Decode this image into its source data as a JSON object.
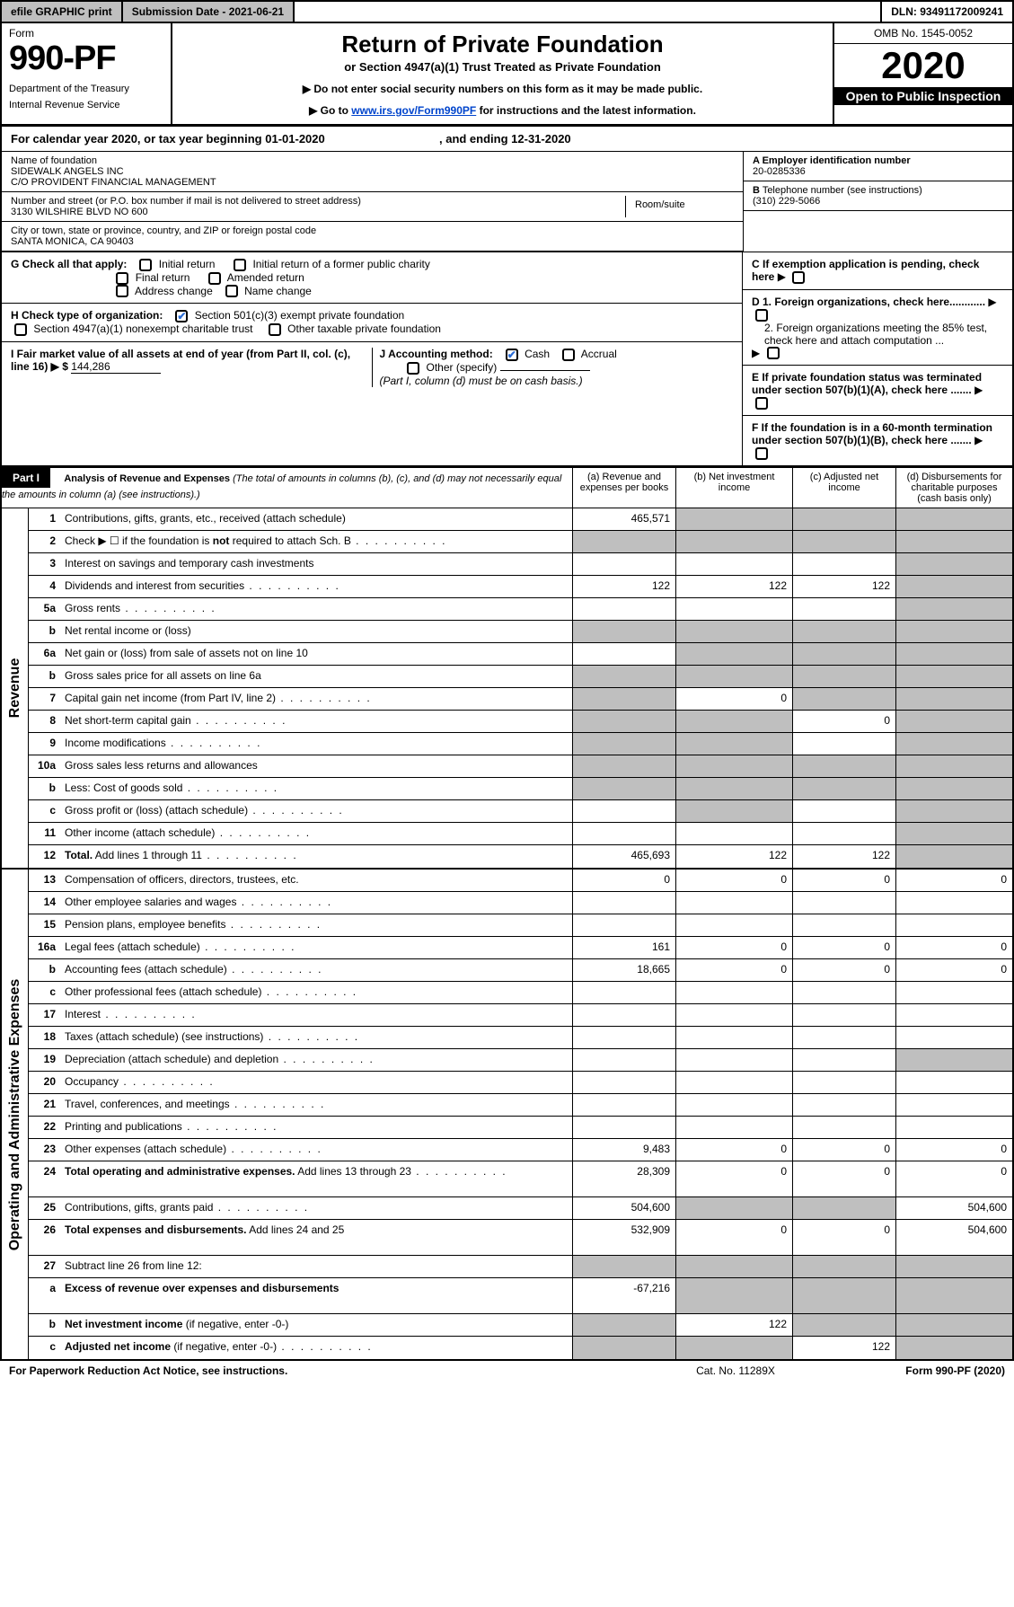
{
  "topbar": {
    "efile": "efile GRAPHIC print",
    "submission": "Submission Date - 2021-06-21",
    "dln": "DLN: 93491172009241"
  },
  "header": {
    "form_label": "Form",
    "form_number": "990-PF",
    "dept1": "Department of the Treasury",
    "dept2": "Internal Revenue Service",
    "title": "Return of Private Foundation",
    "subtitle": "or Section 4947(a)(1) Trust Treated as Private Foundation",
    "note1": "▶ Do not enter social security numbers on this form as it may be made public.",
    "note2_pre": "▶ Go to ",
    "note2_link": "www.irs.gov/Form990PF",
    "note2_post": " for instructions and the latest information.",
    "omb": "OMB No. 1545-0052",
    "year": "2020",
    "open": "Open to Public Inspection"
  },
  "calendar": {
    "pre": "For calendar year 2020, or tax year beginning ",
    "begin": "01-01-2020",
    "mid": " , and ending ",
    "end": "12-31-2020"
  },
  "info": {
    "name_lbl": "Name of foundation",
    "name1": "SIDEWALK ANGELS INC",
    "name2": "C/O PROVIDENT FINANCIAL MANAGEMENT",
    "street_lbl": "Number and street (or P.O. box number if mail is not delivered to street address)",
    "street": "3130 WILSHIRE BLVD NO 600",
    "room_lbl": "Room/suite",
    "city_lbl": "City or town, state or province, country, and ZIP or foreign postal code",
    "city": "SANTA MONICA, CA  90403",
    "a_lbl": "A Employer identification number",
    "a_val": "20-0285336",
    "b_lbl": "B",
    "b_text": " Telephone number (see instructions)",
    "b_val": "(310) 229-5066",
    "c_text": "C If exemption application is pending, check here",
    "d1": "D 1. Foreign organizations, check here............",
    "d2": "2. Foreign organizations meeting the 85% test, check here and attach computation ...",
    "e": "E  If private foundation status was terminated under section 507(b)(1)(A), check here .......",
    "f": "F  If the foundation is in a 60-month termination under section 507(b)(1)(B), check here .......",
    "g_lbl": "G Check all that apply:",
    "g1": "Initial return",
    "g2": "Initial return of a former public charity",
    "g3": "Final return",
    "g4": "Amended return",
    "g5": "Address change",
    "g6": "Name change",
    "h_lbl": "H Check type of organization:",
    "h1": "Section 501(c)(3) exempt private foundation",
    "h2": "Section 4947(a)(1) nonexempt charitable trust",
    "h3": "Other taxable private foundation",
    "i_lbl": "I Fair market value of all assets at end of year (from Part II, col. (c), line 16) ▶ $ ",
    "i_val": "144,286",
    "j_lbl": "J Accounting method:",
    "j1": "Cash",
    "j2": "Accrual",
    "j3": "Other (specify)",
    "j_note": "(Part I, column (d) must be on cash basis.)"
  },
  "part1": {
    "label": "Part I",
    "title": "Analysis of Revenue and Expenses",
    "title_note": "(The total of amounts in columns (b), (c), and (d) may not necessarily equal the amounts in column (a) (see instructions).)",
    "col_a": "(a)   Revenue and expenses per books",
    "col_b": "(b)  Net investment income",
    "col_c": "(c)  Adjusted net income",
    "col_d": "(d)  Disbursements for charitable purposes (cash basis only)",
    "side_revenue": "Revenue",
    "side_expenses": "Operating and Administrative Expenses"
  },
  "rows_rev": [
    {
      "n": "1",
      "label": "Contributions, gifts, grants, etc., received (attach schedule)",
      "a": "465,571",
      "b": "",
      "c": "",
      "d": "",
      "grey": [
        "b",
        "c",
        "d"
      ]
    },
    {
      "n": "2",
      "label": "Check ▶ ☐ if the foundation is <b>not</b> required to attach Sch. B",
      "a": "",
      "b": "",
      "c": "",
      "d": "",
      "grey": [
        "a",
        "b",
        "c",
        "d"
      ],
      "html": true,
      "dots": true
    },
    {
      "n": "3",
      "label": "Interest on savings and temporary cash investments",
      "a": "",
      "b": "",
      "c": "",
      "d": "",
      "grey": [
        "d"
      ]
    },
    {
      "n": "4",
      "label": "Dividends and interest from securities",
      "a": "122",
      "b": "122",
      "c": "122",
      "d": "",
      "grey": [
        "d"
      ],
      "dots": true
    },
    {
      "n": "5a",
      "label": "Gross rents",
      "a": "",
      "b": "",
      "c": "",
      "d": "",
      "grey": [
        "d"
      ],
      "dots": true
    },
    {
      "n": "b",
      "label": "Net rental income or (loss)",
      "a": "",
      "b": "",
      "c": "",
      "d": "",
      "grey": [
        "a",
        "b",
        "c",
        "d"
      ]
    },
    {
      "n": "6a",
      "label": "Net gain or (loss) from sale of assets not on line 10",
      "a": "",
      "b": "",
      "c": "",
      "d": "",
      "grey": [
        "b",
        "c",
        "d"
      ]
    },
    {
      "n": "b",
      "label": "Gross sales price for all assets on line 6a",
      "a": "",
      "b": "",
      "c": "",
      "d": "",
      "grey": [
        "a",
        "b",
        "c",
        "d"
      ]
    },
    {
      "n": "7",
      "label": "Capital gain net income (from Part IV, line 2)",
      "a": "",
      "b": "0",
      "c": "",
      "d": "",
      "grey": [
        "a",
        "c",
        "d"
      ],
      "dots": true
    },
    {
      "n": "8",
      "label": "Net short-term capital gain",
      "a": "",
      "b": "",
      "c": "0",
      "d": "",
      "grey": [
        "a",
        "b",
        "d"
      ],
      "dots": true
    },
    {
      "n": "9",
      "label": "Income modifications",
      "a": "",
      "b": "",
      "c": "",
      "d": "",
      "grey": [
        "a",
        "b",
        "d"
      ],
      "dots": true
    },
    {
      "n": "10a",
      "label": "Gross sales less returns and allowances",
      "a": "",
      "b": "",
      "c": "",
      "d": "",
      "grey": [
        "a",
        "b",
        "c",
        "d"
      ]
    },
    {
      "n": "b",
      "label": "Less: Cost of goods sold",
      "a": "",
      "b": "",
      "c": "",
      "d": "",
      "grey": [
        "a",
        "b",
        "c",
        "d"
      ],
      "dots": true
    },
    {
      "n": "c",
      "label": "Gross profit or (loss) (attach schedule)",
      "a": "",
      "b": "",
      "c": "",
      "d": "",
      "grey": [
        "b",
        "d"
      ],
      "dots": true
    },
    {
      "n": "11",
      "label": "Other income (attach schedule)",
      "a": "",
      "b": "",
      "c": "",
      "d": "",
      "grey": [
        "d"
      ],
      "dots": true
    },
    {
      "n": "12",
      "label": "<b>Total.</b> Add lines 1 through 11",
      "a": "465,693",
      "b": "122",
      "c": "122",
      "d": "",
      "grey": [
        "d"
      ],
      "html": true,
      "dots": true
    }
  ],
  "rows_exp": [
    {
      "n": "13",
      "label": "Compensation of officers, directors, trustees, etc.",
      "a": "0",
      "b": "0",
      "c": "0",
      "d": "0"
    },
    {
      "n": "14",
      "label": "Other employee salaries and wages",
      "a": "",
      "b": "",
      "c": "",
      "d": "",
      "dots": true
    },
    {
      "n": "15",
      "label": "Pension plans, employee benefits",
      "a": "",
      "b": "",
      "c": "",
      "d": "",
      "dots": true
    },
    {
      "n": "16a",
      "label": "Legal fees (attach schedule)",
      "a": "161",
      "b": "0",
      "c": "0",
      "d": "0",
      "dots": true
    },
    {
      "n": "b",
      "label": "Accounting fees (attach schedule)",
      "a": "18,665",
      "b": "0",
      "c": "0",
      "d": "0",
      "dots": true
    },
    {
      "n": "c",
      "label": "Other professional fees (attach schedule)",
      "a": "",
      "b": "",
      "c": "",
      "d": "",
      "dots": true
    },
    {
      "n": "17",
      "label": "Interest",
      "a": "",
      "b": "",
      "c": "",
      "d": "",
      "dots": true
    },
    {
      "n": "18",
      "label": "Taxes (attach schedule) (see instructions)",
      "a": "",
      "b": "",
      "c": "",
      "d": "",
      "dots": true
    },
    {
      "n": "19",
      "label": "Depreciation (attach schedule) and depletion",
      "a": "",
      "b": "",
      "c": "",
      "d": "",
      "grey": [
        "d"
      ],
      "dots": true
    },
    {
      "n": "20",
      "label": "Occupancy",
      "a": "",
      "b": "",
      "c": "",
      "d": "",
      "dots": true
    },
    {
      "n": "21",
      "label": "Travel, conferences, and meetings",
      "a": "",
      "b": "",
      "c": "",
      "d": "",
      "dots": true
    },
    {
      "n": "22",
      "label": "Printing and publications",
      "a": "",
      "b": "",
      "c": "",
      "d": "",
      "dots": true
    },
    {
      "n": "23",
      "label": "Other expenses (attach schedule)",
      "a": "9,483",
      "b": "0",
      "c": "0",
      "d": "0",
      "dots": true
    },
    {
      "n": "24",
      "label": "<b>Total operating and administrative expenses.</b> Add lines 13 through 23",
      "a": "28,309",
      "b": "0",
      "c": "0",
      "d": "0",
      "html": true,
      "dots": true,
      "tall": true
    },
    {
      "n": "25",
      "label": "Contributions, gifts, grants paid",
      "a": "504,600",
      "b": "",
      "c": "",
      "d": "504,600",
      "grey": [
        "b",
        "c"
      ],
      "dots": true
    },
    {
      "n": "26",
      "label": "<b>Total expenses and disbursements.</b> Add lines 24 and 25",
      "a": "532,909",
      "b": "0",
      "c": "0",
      "d": "504,600",
      "html": true,
      "tall": true
    },
    {
      "n": "27",
      "label": "Subtract line 26 from line 12:",
      "a": "",
      "b": "",
      "c": "",
      "d": "",
      "grey": [
        "a",
        "b",
        "c",
        "d"
      ]
    },
    {
      "n": "a",
      "label": "<b>Excess of revenue over expenses and disbursements</b>",
      "a": "-67,216",
      "b": "",
      "c": "",
      "d": "",
      "grey": [
        "b",
        "c",
        "d"
      ],
      "html": true,
      "tall": true
    },
    {
      "n": "b",
      "label": "<b>Net investment income</b> (if negative, enter -0-)",
      "a": "",
      "b": "122",
      "c": "",
      "d": "",
      "grey": [
        "a",
        "c",
        "d"
      ],
      "html": true
    },
    {
      "n": "c",
      "label": "<b>Adjusted net income</b> (if negative, enter -0-)",
      "a": "",
      "b": "",
      "c": "122",
      "d": "",
      "grey": [
        "a",
        "b",
        "d"
      ],
      "html": true,
      "dots": true
    }
  ],
  "footer": {
    "left": "For Paperwork Reduction Act Notice, see instructions.",
    "center": "Cat. No. 11289X",
    "right": "Form 990-PF (2020)"
  }
}
